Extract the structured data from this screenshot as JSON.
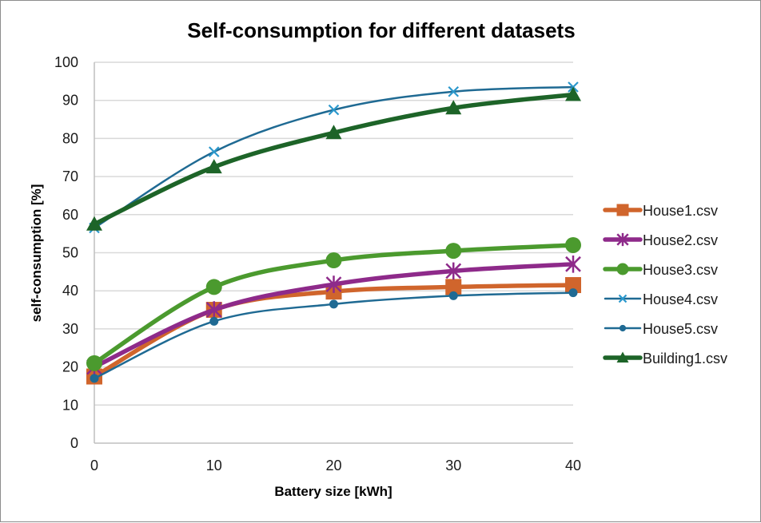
{
  "chart_data": {
    "type": "line",
    "title": "Self-consumption for different datasets",
    "xlabel": "Battery size [kWh]",
    "ylabel": "self-consumption [%]",
    "x": [
      0,
      10,
      20,
      30,
      40
    ],
    "xlim": [
      0,
      40
    ],
    "ylim": [
      0,
      100
    ],
    "xticks": [
      0,
      10,
      20,
      30,
      40
    ],
    "yticks": [
      0,
      10,
      20,
      30,
      40,
      50,
      60,
      70,
      80,
      90,
      100
    ],
    "grid": "horizontal",
    "smooth": true,
    "legend_position": "right",
    "series": [
      {
        "name": "House1.csv",
        "color": "#d0652c",
        "marker": "square",
        "line": "thick",
        "values": [
          17.5,
          35,
          39.8,
          41,
          41.5
        ]
      },
      {
        "name": "House2.csv",
        "color": "#8e2a8a",
        "marker": "star",
        "line": "thick",
        "values": [
          20,
          35,
          41.7,
          45.2,
          47
        ]
      },
      {
        "name": "House3.csv",
        "color": "#4b9a2e",
        "marker": "circle",
        "line": "thick",
        "values": [
          21,
          41,
          48,
          50.5,
          52
        ]
      },
      {
        "name": "House4.csv",
        "color": "#1f6a93",
        "marker": "x",
        "marker_color": "#2b98cc",
        "line": "thin",
        "values": [
          56.5,
          76.5,
          87.5,
          92.3,
          93.5
        ]
      },
      {
        "name": "House5.csv",
        "color": "#1f6a93",
        "marker": "small-circle",
        "line": "thin",
        "values": [
          17,
          32,
          36.5,
          38.7,
          39.5
        ]
      },
      {
        "name": "Building1.csv",
        "color": "#1d6428",
        "marker": "triangle",
        "line": "thick",
        "values": [
          57.5,
          72.5,
          81.5,
          88,
          91.5
        ]
      }
    ]
  }
}
